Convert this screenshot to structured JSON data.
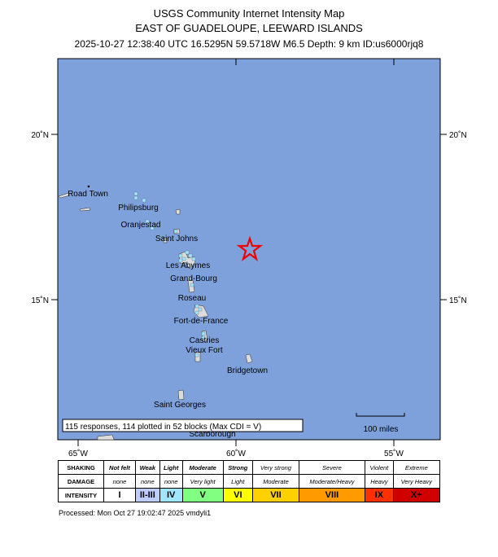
{
  "header": {
    "title": "USGS Community Internet Intensity Map",
    "region": "EAST OF GUADELOUPE, LEEWARD ISLANDS",
    "event": "2025-10-27 12:38:40 UTC 16.5295N 59.5718W M6.5 Depth: 9 km ID:us6000rjq8"
  },
  "map": {
    "lat_labels": [
      "20˚N",
      "15˚N"
    ],
    "lon_labels": [
      "65˚W",
      "60˚W",
      "55˚W"
    ],
    "places": [
      "Road Town",
      "Philipsburg",
      "Oranjestad",
      "Saint Johns",
      "Les Abymes",
      "Grand-Bourg",
      "Roseau",
      "Fort-de-France",
      "Castries",
      "Vieux Fort",
      "Bridgetown",
      "Saint Georges",
      "Scarborough"
    ],
    "responses": "115 responses, 114 plotted in 52 blocks (Max CDI = V)",
    "scale": "100 miles"
  },
  "legend": {
    "rows": [
      [
        "SHAKING",
        "Not felt",
        "Weak",
        "Light",
        "Moderate",
        "Strong",
        "Very strong",
        "Severe",
        "Violent",
        "Extreme"
      ],
      [
        "DAMAGE",
        "none",
        "none",
        "none",
        "Very light",
        "Light",
        "Moderate",
        "Moderate/Heavy",
        "Heavy",
        "Very Heavy"
      ],
      [
        "INTENSITY",
        "I",
        "II-III",
        "IV",
        "V",
        "VI",
        "VII",
        "VIII",
        "IX",
        "X+"
      ]
    ]
  },
  "footer": "Processed: Mon Oct 27 19:02:47 2025 vmdyli1"
}
